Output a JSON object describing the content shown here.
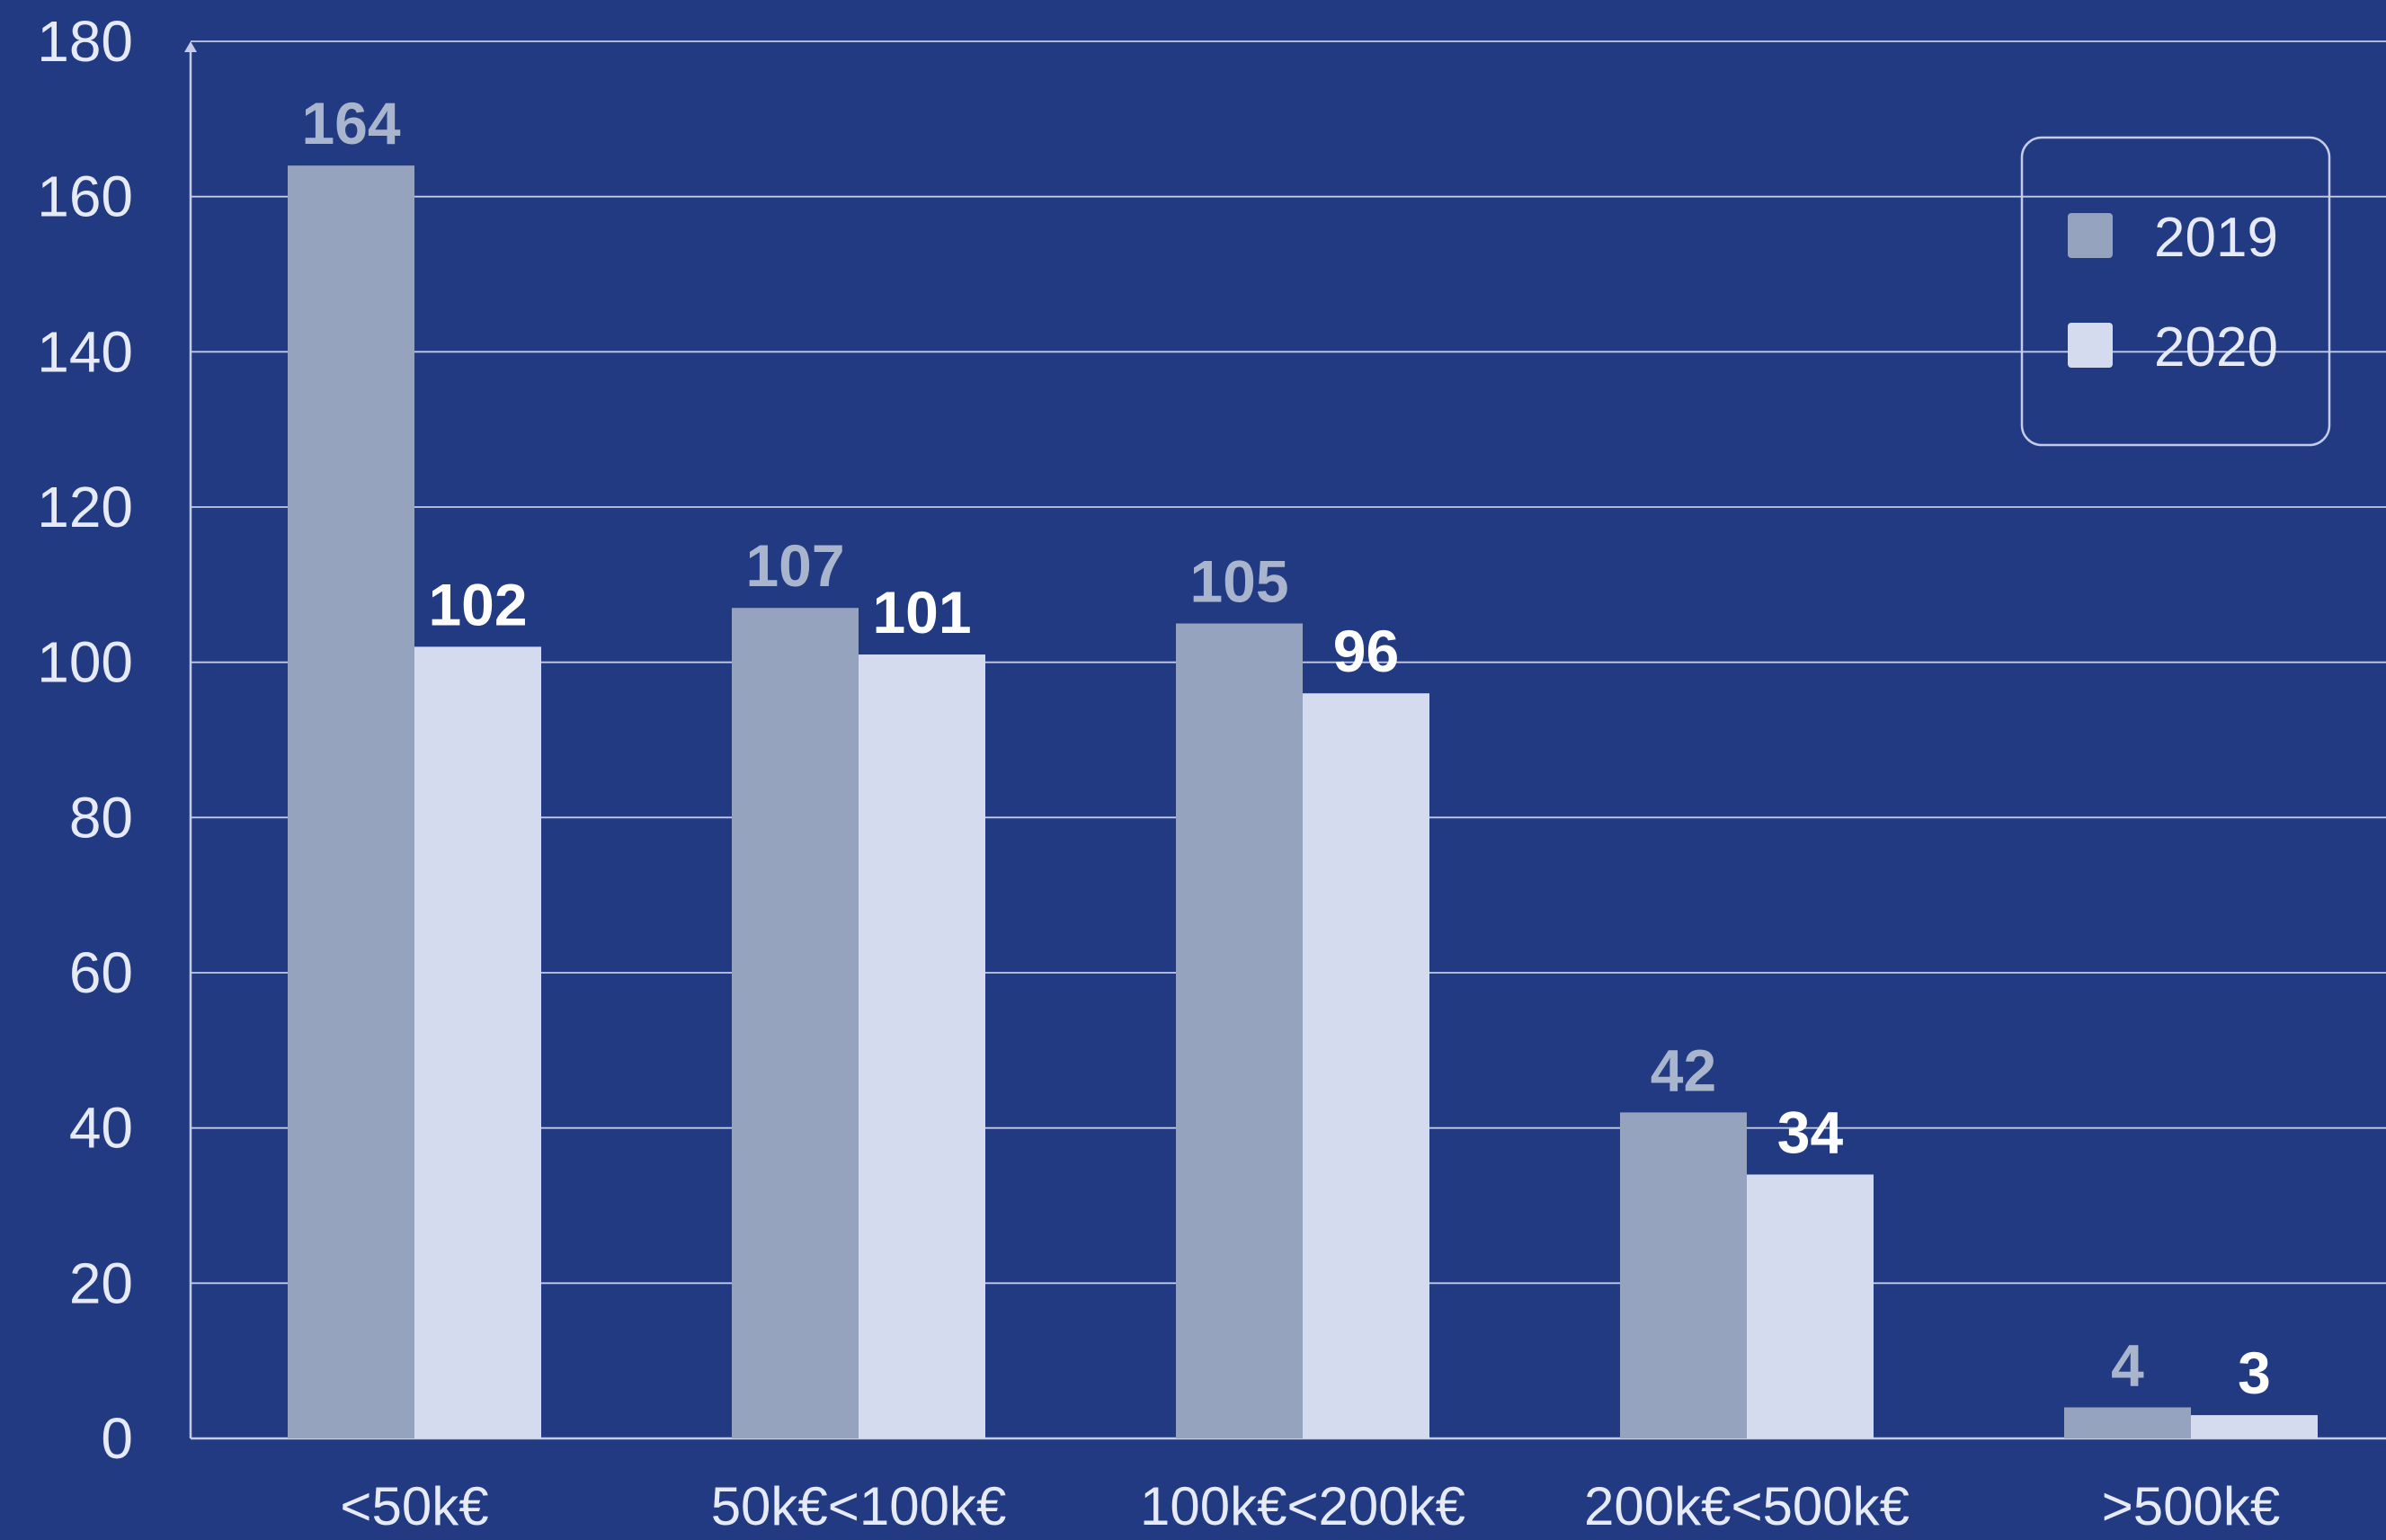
{
  "colors": {
    "background": "#213a82",
    "grid": "#c3cbe6",
    "axis_text": "#e6eaf7",
    "series_2019": "#95a3be",
    "series_2020": "#d4dbef",
    "label_2019": "#a9b4cd",
    "label_2020": "#ffffff"
  },
  "chart_data": {
    "type": "bar",
    "title": "",
    "xlabel": "",
    "ylabel": "",
    "categories": [
      "<50k€",
      "50k€<100k€",
      "100k€<200k€",
      "200k€<500k€",
      ">500k€"
    ],
    "series": [
      {
        "name": "2019",
        "values": [
          164,
          107,
          105,
          42,
          4
        ]
      },
      {
        "name": "2020",
        "values": [
          102,
          101,
          96,
          34,
          3
        ]
      }
    ],
    "ylim": [
      0,
      180
    ],
    "yticks": [
      "0",
      "20",
      "40",
      "60",
      "80",
      "100",
      "120",
      "140",
      "160",
      "180"
    ],
    "grid": true,
    "legend_position": "top-right",
    "data_labels": true
  }
}
